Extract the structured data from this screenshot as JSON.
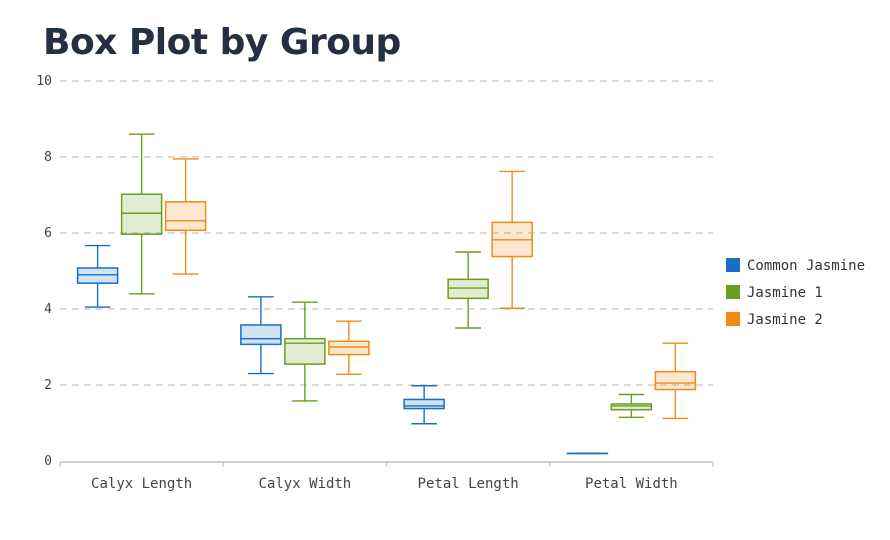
{
  "chart_data": {
    "type": "boxplot",
    "title": "Box Plot by Group",
    "categories": [
      "Calyx Length",
      "Calyx Width",
      "Petal Length",
      "Petal Width"
    ],
    "ylim": [
      0,
      10
    ],
    "yticks": [
      0,
      2,
      4,
      6,
      8,
      10
    ],
    "grid": true,
    "legend_position": "right",
    "series": [
      {
        "name": "Common Jasmine",
        "color": "#1a6fc4",
        "boxes": [
          {
            "min": 4.05,
            "q1": 4.68,
            "median": 4.9,
            "q3": 5.08,
            "max": 5.67
          },
          {
            "min": 2.3,
            "q1": 3.07,
            "median": 3.22,
            "q3": 3.58,
            "max": 4.32
          },
          {
            "min": 0.98,
            "q1": 1.38,
            "median": 1.45,
            "q3": 1.62,
            "max": 1.98
          },
          {
            "min": 0.2,
            "q1": 0.2,
            "median": 0.2,
            "q3": 0.2,
            "max": 0.2
          }
        ]
      },
      {
        "name": "Jasmine 1",
        "color": "#6a9e1f",
        "boxes": [
          {
            "min": 4.4,
            "q1": 5.97,
            "median": 6.52,
            "q3": 7.02,
            "max": 8.6
          },
          {
            "min": 1.58,
            "q1": 2.55,
            "median": 3.1,
            "q3": 3.22,
            "max": 4.18
          },
          {
            "min": 3.5,
            "q1": 4.28,
            "median": 4.55,
            "q3": 4.78,
            "max": 5.5
          },
          {
            "min": 1.15,
            "q1": 1.35,
            "median": 1.45,
            "q3": 1.5,
            "max": 1.75
          }
        ]
      },
      {
        "name": "Jasmine 2",
        "color": "#f08c12",
        "boxes": [
          {
            "min": 4.92,
            "q1": 6.07,
            "median": 6.32,
            "q3": 6.82,
            "max": 7.95
          },
          {
            "min": 2.28,
            "q1": 2.8,
            "median": 3.0,
            "q3": 3.15,
            "max": 3.68
          },
          {
            "min": 4.02,
            "q1": 5.38,
            "median": 5.82,
            "q3": 6.28,
            "max": 7.62
          },
          {
            "min": 1.12,
            "q1": 1.88,
            "median": 2.05,
            "q3": 2.35,
            "max": 3.1
          }
        ]
      }
    ]
  }
}
